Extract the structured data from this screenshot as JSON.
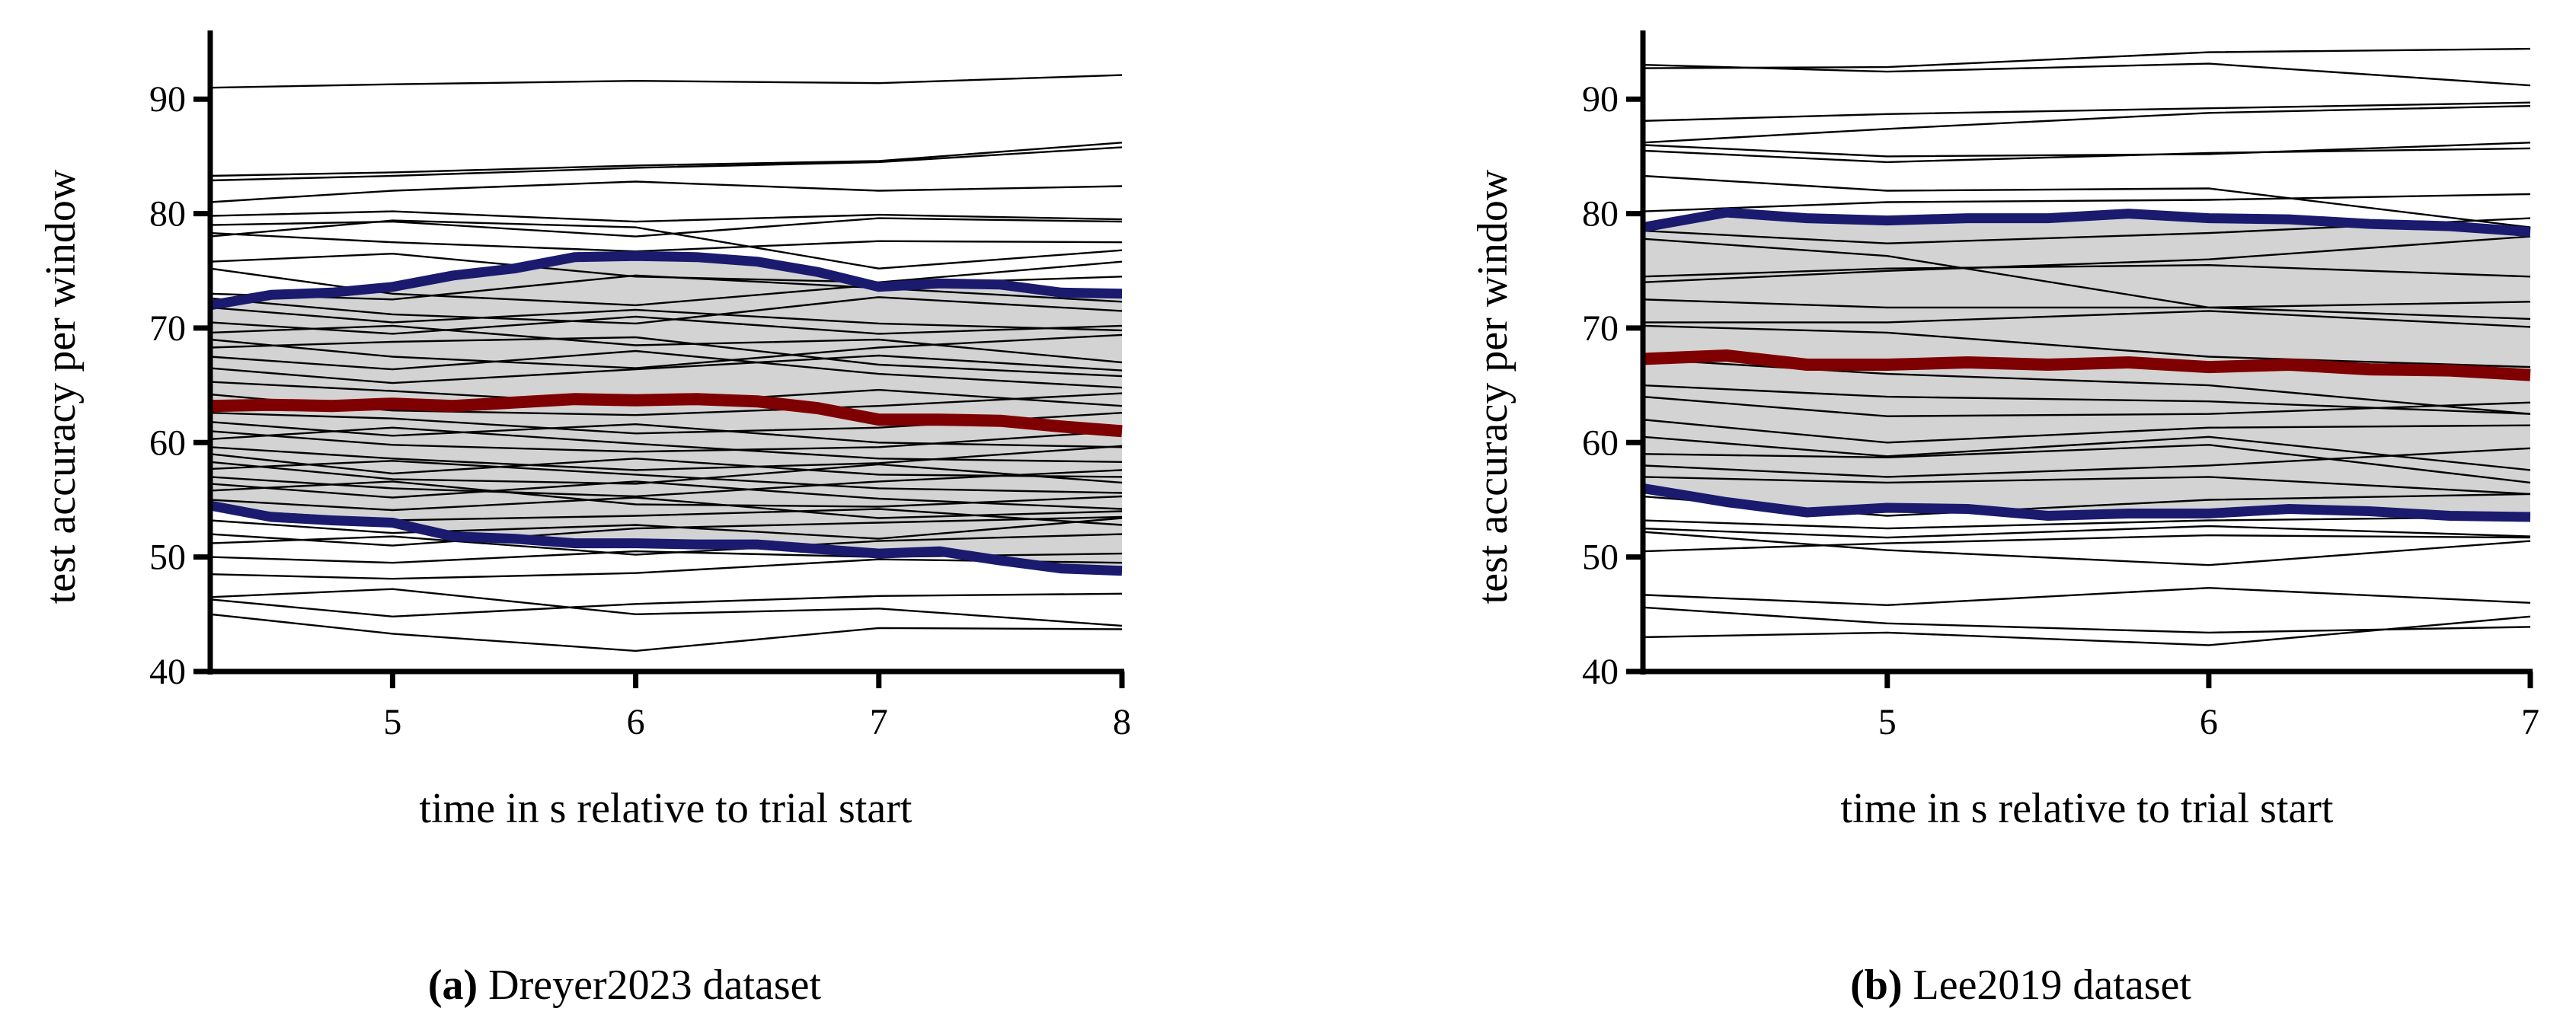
{
  "colors": {
    "subject": "#000000",
    "band": "#d3d3d3",
    "bound": "#1a1a6e",
    "mean": "#7f0000"
  },
  "chart_data": [
    {
      "type": "line",
      "caption_label": "(a)",
      "caption_text": " Dreyer2023 dataset",
      "xlabel": "time in s relative to trial start",
      "ylabel": "test accuracy per window",
      "xlim": [
        4.25,
        8
      ],
      "ylim": [
        40,
        96
      ],
      "xticks": [
        "5",
        "6",
        "7",
        "8"
      ],
      "xtick_values": [
        5,
        6,
        7,
        8
      ],
      "yticks": [
        "40",
        "50",
        "60",
        "70",
        "80",
        "90"
      ],
      "ytick_values": [
        40,
        50,
        60,
        70,
        80,
        90
      ],
      "subject_x": [
        4.25,
        5,
        6,
        7,
        8
      ],
      "subjects": [
        [
          91,
          91.3,
          91.6,
          91.4,
          92.1
        ],
        [
          83.3,
          83.6,
          84.2,
          84.6,
          86.2
        ],
        [
          82.9,
          83.3,
          84,
          84.5,
          85.8
        ],
        [
          81,
          82,
          82.8,
          82,
          82.4
        ],
        [
          79.8,
          80.2,
          79.3,
          79.9,
          79.5
        ],
        [
          79,
          79.3,
          78,
          79.6,
          79.3
        ],
        [
          78.3,
          77.5,
          76.7,
          77.6,
          77.5
        ],
        [
          78,
          79.4,
          78.8,
          75.2,
          76.8
        ],
        [
          75.8,
          76.5,
          74.5,
          74,
          75.8
        ],
        [
          75.2,
          73,
          72,
          73.8,
          74.5
        ],
        [
          73,
          72.5,
          74.6,
          73.5,
          72.3
        ],
        [
          72.6,
          71.2,
          70.4,
          72.7,
          71.5
        ],
        [
          71.8,
          70.5,
          71.6,
          70.4,
          69.8
        ],
        [
          70.5,
          69.5,
          71,
          69.5,
          70.2
        ],
        [
          69.6,
          70.2,
          68.5,
          69,
          67
        ],
        [
          69,
          67.5,
          66.5,
          68.3,
          69.4
        ],
        [
          68.3,
          68.8,
          69.2,
          66.8,
          65.8
        ],
        [
          67.5,
          66.4,
          68,
          66,
          64.8
        ],
        [
          66.5,
          65.2,
          66.4,
          67.6,
          66.3
        ],
        [
          65.3,
          64.5,
          63.3,
          64.6,
          63.2
        ],
        [
          64.2,
          62.8,
          62.4,
          63.2,
          64.3
        ],
        [
          62.6,
          62.1,
          60.8,
          61.3,
          62.6
        ],
        [
          61.8,
          60.6,
          61.6,
          60,
          59.6
        ],
        [
          61,
          59.8,
          59.2,
          59.6,
          61
        ],
        [
          60.3,
          61.3,
          59.9,
          58.6,
          58.3
        ],
        [
          59.6,
          58.6,
          57.6,
          58.2,
          59.7
        ],
        [
          59,
          57.3,
          58.6,
          57.2,
          57
        ],
        [
          58.3,
          56.8,
          56.4,
          58.1,
          56.5
        ],
        [
          57.7,
          58.4,
          57.2,
          56,
          55.6
        ],
        [
          57,
          56,
          55.3,
          56.6,
          57.6
        ],
        [
          56.4,
          55.2,
          56.6,
          55.1,
          54.2
        ],
        [
          55.8,
          56.6,
          54.6,
          54.4,
          55.3
        ],
        [
          55,
          54.1,
          55.2,
          53.4,
          54
        ],
        [
          54.2,
          53.2,
          53.6,
          54.2,
          52.8
        ],
        [
          53.2,
          52.1,
          52.8,
          51.6,
          53.4
        ],
        [
          52,
          51,
          52.5,
          53,
          53.5
        ],
        [
          51.2,
          51.8,
          50.2,
          51.4,
          52
        ],
        [
          50,
          49.5,
          50.5,
          50,
          50.3
        ],
        [
          48.5,
          48.1,
          48.6,
          49.8,
          49.5
        ],
        [
          46.5,
          47.2,
          45,
          45.5,
          44
        ],
        [
          46.3,
          44.8,
          45.9,
          46.6,
          46.8
        ],
        [
          45,
          43.3,
          41.8,
          43.8,
          43.7
        ]
      ],
      "band_x": [
        4.25,
        4.5,
        4.75,
        5,
        5.25,
        5.5,
        5.75,
        6,
        6.25,
        6.5,
        6.75,
        7,
        7.25,
        7.5,
        7.75,
        8
      ],
      "upper": [
        72,
        72.9,
        73.1,
        73.6,
        74.6,
        75.2,
        76.2,
        76.3,
        76.2,
        75.8,
        74.9,
        73.6,
        73.9,
        73.8,
        73.1,
        73
      ],
      "mean": [
        63.2,
        63.3,
        63.2,
        63.4,
        63.2,
        63.5,
        63.8,
        63.7,
        63.8,
        63.6,
        63,
        62,
        62,
        61.9,
        61.4,
        61
      ],
      "lower": [
        54.5,
        53.5,
        53.2,
        53,
        51.8,
        51.6,
        51.2,
        51.2,
        51.1,
        51.1,
        50.7,
        50.3,
        50.5,
        49.7,
        49,
        48.8
      ]
    },
    {
      "type": "line",
      "caption_label": "(b)",
      "caption_text": " Lee2019 dataset",
      "xlabel": "time in s relative to trial start",
      "ylabel": "test accuracy per window",
      "xlim": [
        4.24,
        7
      ],
      "ylim": [
        40,
        96
      ],
      "xticks": [
        "5",
        "6",
        "7"
      ],
      "xtick_values": [
        5,
        6,
        7
      ],
      "yticks": [
        "40",
        "50",
        "60",
        "70",
        "80",
        "90"
      ],
      "ytick_values": [
        40,
        50,
        60,
        70,
        80,
        90
      ],
      "subject_x": [
        4.24,
        5,
        6,
        7
      ],
      "subjects": [
        [
          93,
          92.4,
          93.1,
          91.2
        ],
        [
          92.7,
          92.8,
          94.1,
          94.4
        ],
        [
          88.1,
          88.7,
          89.2,
          89.7
        ],
        [
          86.2,
          87.4,
          88.8,
          89.4
        ],
        [
          86,
          85,
          85.2,
          86.2
        ],
        [
          85.5,
          84.5,
          85.3,
          85.7
        ],
        [
          83.3,
          82,
          82.2,
          78.8
        ],
        [
          80.2,
          81,
          81.2,
          81.7
        ],
        [
          78.5,
          77.4,
          78.3,
          79.6
        ],
        [
          77.8,
          76.3,
          71.8,
          70.8
        ],
        [
          74.5,
          75.2,
          75.5,
          74.5
        ],
        [
          74,
          75,
          76,
          78
        ],
        [
          72.5,
          71.8,
          71.8,
          72.3
        ],
        [
          70.5,
          70.5,
          71.5,
          70.1
        ],
        [
          70.2,
          69.6,
          67.5,
          66.6
        ],
        [
          67.3,
          66,
          65,
          62.5
        ],
        [
          65,
          64,
          63.6,
          62.5
        ],
        [
          64,
          62.3,
          62.5,
          63.5
        ],
        [
          62,
          60,
          61.3,
          61.5
        ],
        [
          60.5,
          58.8,
          60.5,
          57.6
        ],
        [
          59,
          58.7,
          59.8,
          56.5
        ],
        [
          58,
          57,
          58,
          59.5
        ],
        [
          57,
          56.5,
          57,
          55.5
        ],
        [
          55.3,
          53.6,
          55,
          55.5
        ],
        [
          53.2,
          52.5,
          53.2,
          53.5
        ],
        [
          52.5,
          51.7,
          52.7,
          51.8
        ],
        [
          50.5,
          51.2,
          51.9,
          51.7
        ],
        [
          52.2,
          50.6,
          49.3,
          51.4
        ],
        [
          46.7,
          45.8,
          47.3,
          46
        ],
        [
          45.6,
          44.2,
          43.4,
          43.9
        ],
        [
          43,
          43.4,
          42.3,
          44.8
        ]
      ],
      "band_x": [
        4.24,
        4.5,
        4.75,
        5,
        5.25,
        5.5,
        5.75,
        6,
        6.25,
        6.5,
        6.75,
        7
      ],
      "upper": [
        78.8,
        80.1,
        79.6,
        79.4,
        79.6,
        79.6,
        80,
        79.6,
        79.5,
        79.1,
        78.9,
        78.4
      ],
      "mean": [
        67.3,
        67.6,
        66.8,
        66.8,
        67,
        66.8,
        67,
        66.6,
        66.8,
        66.4,
        66.3,
        65.9
      ],
      "lower": [
        56,
        54.8,
        53.9,
        54.3,
        54.2,
        53.6,
        53.8,
        53.8,
        54.2,
        54,
        53.6,
        53.5
      ]
    }
  ]
}
